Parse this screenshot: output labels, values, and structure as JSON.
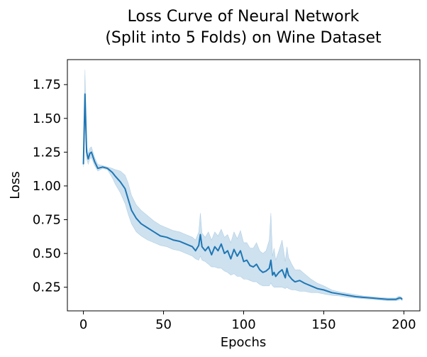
{
  "chart_data": {
    "type": "line",
    "title_line1": "Loss Curve of Neural Network",
    "title_line2": "(Split into 5 Folds) on Wine Dataset",
    "xlabel": "Epochs",
    "ylabel": "Loss",
    "xlim": [
      -10,
      210
    ],
    "ylim": [
      0.075,
      1.935
    ],
    "xticks": [
      0,
      50,
      100,
      150,
      200
    ],
    "yticks": [
      0.25,
      0.5,
      0.75,
      1.0,
      1.25,
      1.5,
      1.75
    ],
    "ytick_labels": [
      "0.25",
      "0.50",
      "0.75",
      "1.00",
      "1.25",
      "1.50",
      "1.75"
    ],
    "xtick_labels": [
      "0",
      "50",
      "100",
      "150",
      "200"
    ],
    "grid": false,
    "line_color": "#1f77b4",
    "band_color": "#1f77b4",
    "series": [
      {
        "x": [
          0,
          1,
          2,
          3,
          4,
          5,
          7,
          9,
          12,
          15,
          18,
          20,
          23,
          26,
          28,
          30,
          33,
          36,
          40,
          44,
          48,
          52,
          56,
          60,
          64,
          68,
          70,
          72,
          73,
          74,
          76,
          78,
          80,
          82,
          84,
          86,
          88,
          90,
          92,
          94,
          96,
          98,
          100,
          102,
          104,
          106,
          108,
          110,
          112,
          114,
          116,
          117,
          118,
          119,
          120,
          122,
          124,
          126,
          127,
          128,
          130,
          132,
          135,
          138,
          142,
          146,
          150,
          155,
          160,
          165,
          170,
          175,
          180,
          185,
          190,
          195,
          197,
          198,
          199
        ],
        "y": [
          1.16,
          1.68,
          1.25,
          1.2,
          1.24,
          1.25,
          1.18,
          1.13,
          1.14,
          1.13,
          1.1,
          1.07,
          1.03,
          0.98,
          0.9,
          0.82,
          0.76,
          0.72,
          0.69,
          0.66,
          0.63,
          0.62,
          0.6,
          0.59,
          0.57,
          0.55,
          0.52,
          0.56,
          0.64,
          0.55,
          0.52,
          0.55,
          0.49,
          0.55,
          0.52,
          0.57,
          0.5,
          0.52,
          0.46,
          0.53,
          0.48,
          0.52,
          0.44,
          0.45,
          0.41,
          0.4,
          0.42,
          0.38,
          0.36,
          0.37,
          0.39,
          0.45,
          0.34,
          0.36,
          0.33,
          0.36,
          0.38,
          0.32,
          0.39,
          0.34,
          0.31,
          0.29,
          0.3,
          0.28,
          0.26,
          0.24,
          0.23,
          0.21,
          0.2,
          0.19,
          0.18,
          0.175,
          0.17,
          0.165,
          0.16,
          0.16,
          0.17,
          0.17,
          0.16
        ],
        "lower": [
          1.14,
          1.5,
          1.2,
          1.16,
          1.2,
          1.21,
          1.15,
          1.11,
          1.13,
          1.12,
          1.06,
          1.01,
          0.95,
          0.87,
          0.79,
          0.72,
          0.66,
          0.63,
          0.6,
          0.58,
          0.56,
          0.55,
          0.53,
          0.52,
          0.5,
          0.48,
          0.46,
          0.45,
          0.48,
          0.45,
          0.44,
          0.42,
          0.4,
          0.4,
          0.39,
          0.39,
          0.37,
          0.36,
          0.34,
          0.35,
          0.33,
          0.33,
          0.31,
          0.31,
          0.3,
          0.29,
          0.29,
          0.27,
          0.26,
          0.26,
          0.26,
          0.28,
          0.26,
          0.25,
          0.25,
          0.25,
          0.25,
          0.24,
          0.25,
          0.24,
          0.23,
          0.23,
          0.22,
          0.22,
          0.21,
          0.21,
          0.2,
          0.19,
          0.185,
          0.175,
          0.17,
          0.165,
          0.16,
          0.155,
          0.15,
          0.15,
          0.155,
          0.16,
          0.15
        ],
        "upper": [
          1.18,
          1.86,
          1.3,
          1.24,
          1.28,
          1.29,
          1.21,
          1.16,
          1.15,
          1.14,
          1.13,
          1.12,
          1.11,
          1.08,
          1.02,
          0.93,
          0.86,
          0.82,
          0.78,
          0.74,
          0.71,
          0.69,
          0.67,
          0.66,
          0.64,
          0.62,
          0.6,
          0.66,
          0.8,
          0.65,
          0.62,
          0.66,
          0.6,
          0.66,
          0.63,
          0.68,
          0.62,
          0.64,
          0.58,
          0.66,
          0.61,
          0.67,
          0.58,
          0.58,
          0.54,
          0.54,
          0.58,
          0.52,
          0.5,
          0.52,
          0.6,
          0.8,
          0.48,
          0.54,
          0.45,
          0.52,
          0.6,
          0.44,
          0.55,
          0.47,
          0.42,
          0.38,
          0.38,
          0.35,
          0.31,
          0.28,
          0.26,
          0.23,
          0.215,
          0.205,
          0.195,
          0.185,
          0.18,
          0.175,
          0.17,
          0.17,
          0.185,
          0.18,
          0.17
        ]
      }
    ]
  }
}
